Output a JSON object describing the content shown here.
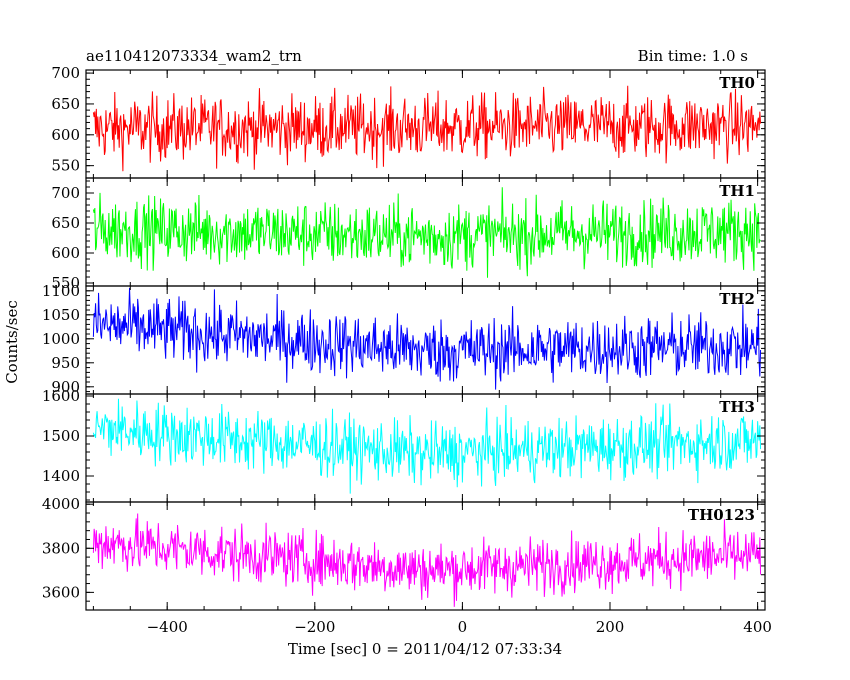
{
  "header": {
    "title": "ae110412073334_wam2_trn",
    "bin_time": "Bin time: 1.0 s"
  },
  "chart_data": {
    "type": "line",
    "xlabel": "Time [sec] 0 = 2011/04/12 07:33:34",
    "ylabel": "Counts/sec",
    "xlim": [
      -510,
      410
    ],
    "x_ticks": [
      -400,
      -200,
      0,
      200,
      400
    ],
    "x_tick_labels": [
      "−400",
      "−200",
      "0",
      "200",
      "400"
    ],
    "x_range": [
      -500,
      404
    ],
    "panels": [
      {
        "name": "TH0",
        "color": "#ff0000",
        "ylim": [
          530,
          705
        ],
        "ticks": [
          550,
          600,
          650,
          700
        ],
        "tick_labels": [
          "550",
          "600",
          "650",
          "700"
        ],
        "mean_start": 610,
        "mean_mid": 612,
        "mean_end": 615,
        "spread": 26
      },
      {
        "name": "TH1",
        "color": "#00ff00",
        "ylim": [
          545,
          725
        ],
        "ticks": [
          550,
          600,
          650,
          700
        ],
        "tick_labels": [
          "550",
          "600",
          "650",
          "700"
        ],
        "mean_start": 640,
        "mean_mid": 628,
        "mean_end": 638,
        "spread": 27
      },
      {
        "name": "TH2",
        "color": "#0000ff",
        "ylim": [
          885,
          1110
        ],
        "ticks": [
          900,
          950,
          1000,
          1050,
          1100
        ],
        "tick_labels": [
          "900",
          "950",
          "1000",
          "1050",
          "1100"
        ],
        "mean_start": 1030,
        "mean_mid": 975,
        "mean_end": 985,
        "spread": 33
      },
      {
        "name": "TH3",
        "color": "#00ffff",
        "ylim": [
          1335,
          1605
        ],
        "ticks": [
          1400,
          1500,
          1600
        ],
        "tick_labels": [
          "1400",
          "1500",
          "1600"
        ],
        "mean_start": 1520,
        "mean_mid": 1455,
        "mean_end": 1490,
        "spread": 38
      },
      {
        "name": "TH0123",
        "color": "#ff00ff",
        "ylim": [
          3520,
          4010
        ],
        "ticks": [
          3600,
          3800,
          4000
        ],
        "tick_labels": [
          "3600",
          "3800",
          "4000"
        ],
        "mean_start": 3830,
        "mean_mid": 3700,
        "mean_end": 3770,
        "spread": 62
      }
    ]
  }
}
